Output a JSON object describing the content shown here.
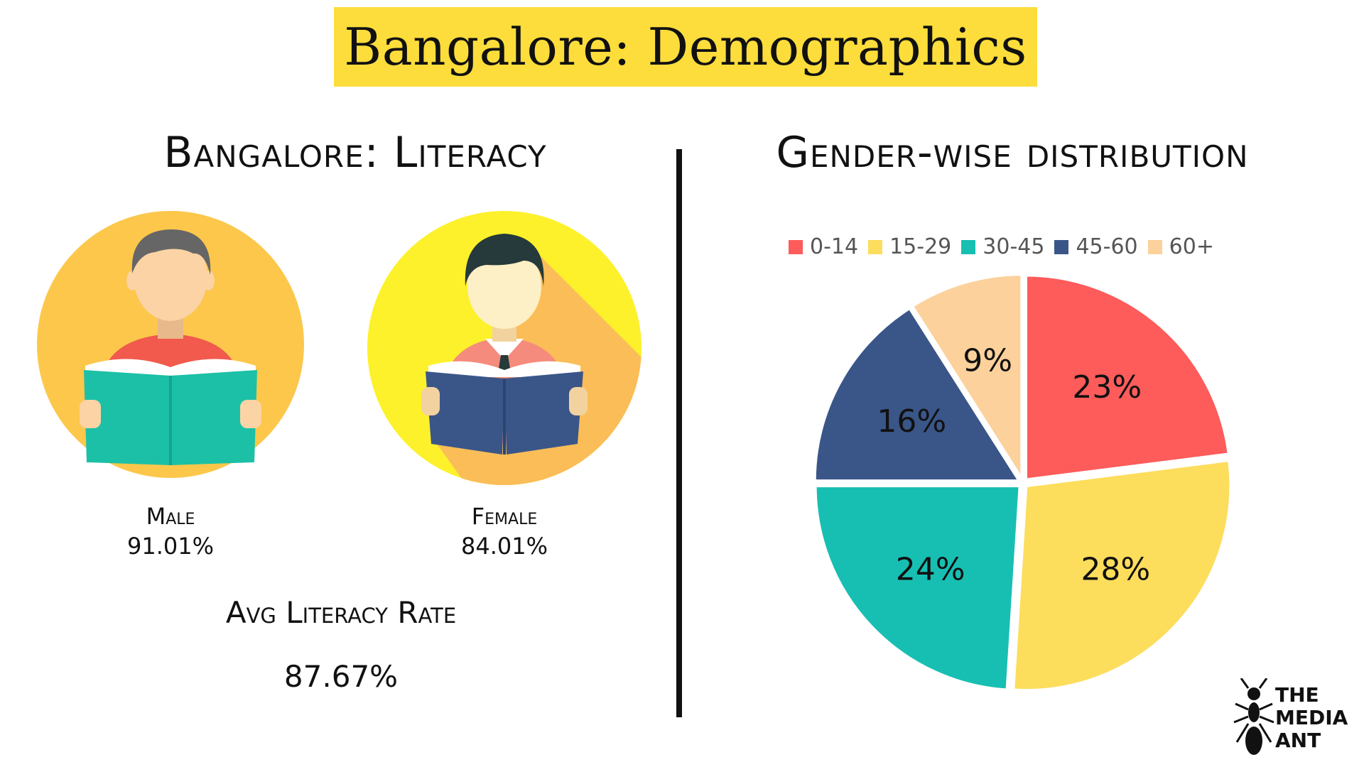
{
  "title": "Bangalore: Demographics",
  "literacy": {
    "heading": "Bangalore: Literacy",
    "male_label": "Male",
    "male_value": "91.01%",
    "female_label": "Female",
    "female_value": "84.01%",
    "avg_label": "Avg Literacy Rate",
    "avg_value": "87.67%"
  },
  "logo": {
    "line1": "THE",
    "line2": "MEDIA",
    "line3": "ANT"
  },
  "chart_data": {
    "type": "pie",
    "title": "Gender-wise distribution",
    "legend_position": "top",
    "categories": [
      "0-14",
      "15-29",
      "30-45",
      "45-60",
      "60+"
    ],
    "values": [
      23,
      28,
      24,
      16,
      9
    ],
    "labels": [
      "23%",
      "28%",
      "24%",
      "16%",
      "9%"
    ],
    "colors": [
      "#fd5c5a",
      "#fddd5c",
      "#17bfb3",
      "#3a5689",
      "#fcd19b"
    ]
  },
  "colors": {
    "banner": "#fddd3b",
    "male_circle": "#fcc74b",
    "female_circle": "#fdf12b",
    "female_shadow": "#fbbd58",
    "book_teal": "#1cc0a6",
    "book_blue": "#3a5689",
    "skin": "#fbd3a5",
    "male_hair": "#666666",
    "female_hair": "#26393b",
    "male_shirt": "#f15a4d",
    "female_shirt": "#f58b7c"
  }
}
